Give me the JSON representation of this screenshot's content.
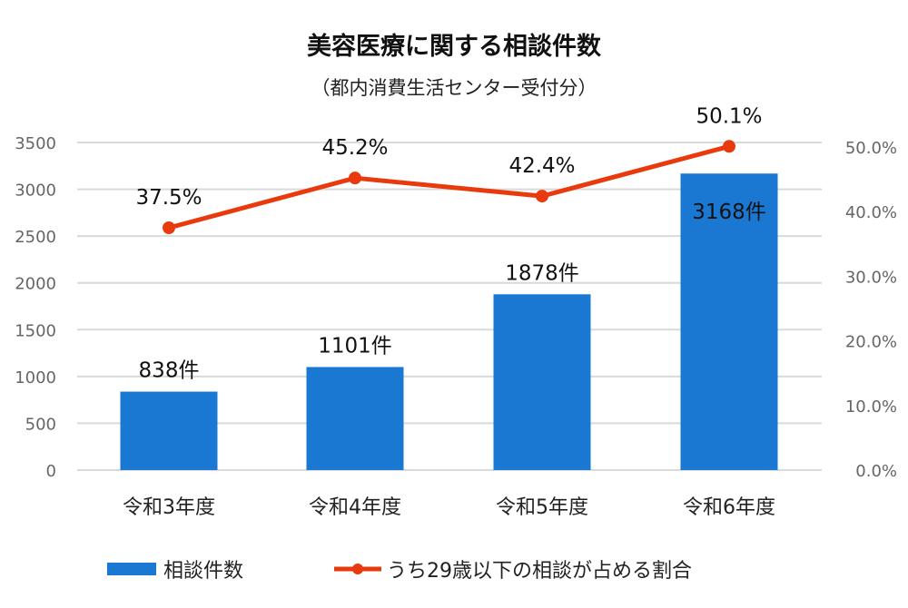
{
  "chart_data": {
    "type": "bar+line",
    "title": "美容医療に関する相談件数",
    "subtitle": "（都内消費生活センター受付分）",
    "categories": [
      "令和3年度",
      "令和4年度",
      "令和5年度",
      "令和6年度"
    ],
    "series": [
      {
        "name": "相談件数",
        "type": "bar",
        "axis": "left",
        "values": [
          838,
          1101,
          1878,
          3168
        ],
        "labels": [
          "838件",
          "1101件",
          "1878件",
          "3168件"
        ],
        "color": "#1a78d2"
      },
      {
        "name": "うち29歳以下の相談が占める割合",
        "type": "line",
        "axis": "right",
        "values": [
          37.5,
          45.2,
          42.4,
          50.1
        ],
        "labels": [
          "37.5%",
          "45.2%",
          "42.4%",
          "50.1%"
        ],
        "color": "#e83a0c"
      }
    ],
    "left_axis": {
      "ylim": [
        0,
        3500
      ],
      "ticks": [
        "0",
        "500",
        "1000",
        "1500",
        "2000",
        "2500",
        "3000",
        "3500"
      ]
    },
    "right_axis": {
      "ylim": [
        0,
        50
      ],
      "ticks": [
        "0.0%",
        "10.0%",
        "20.0%",
        "30.0%",
        "40.0%",
        "50.0%"
      ]
    },
    "grid": true,
    "legend": "bottom"
  }
}
